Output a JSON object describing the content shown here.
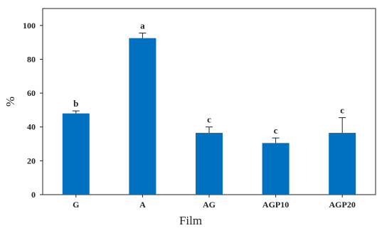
{
  "chart_data": {
    "type": "bar",
    "categories": [
      "G",
      "A",
      "AG",
      "AGP10",
      "AGP20"
    ],
    "values": [
      48,
      92.5,
      36.5,
      30.5,
      36.5
    ],
    "errors": [
      1.5,
      3,
      3.5,
      3,
      9
    ],
    "significance": [
      "b",
      "a",
      "c",
      "c",
      "c"
    ],
    "xlabel": "Film",
    "ylabel": "%",
    "ylim": [
      0,
      100
    ],
    "yticks": [
      "0",
      "20",
      "40",
      "60",
      "80",
      "100"
    ],
    "bar_color": "#0070c0",
    "grid": false
  }
}
